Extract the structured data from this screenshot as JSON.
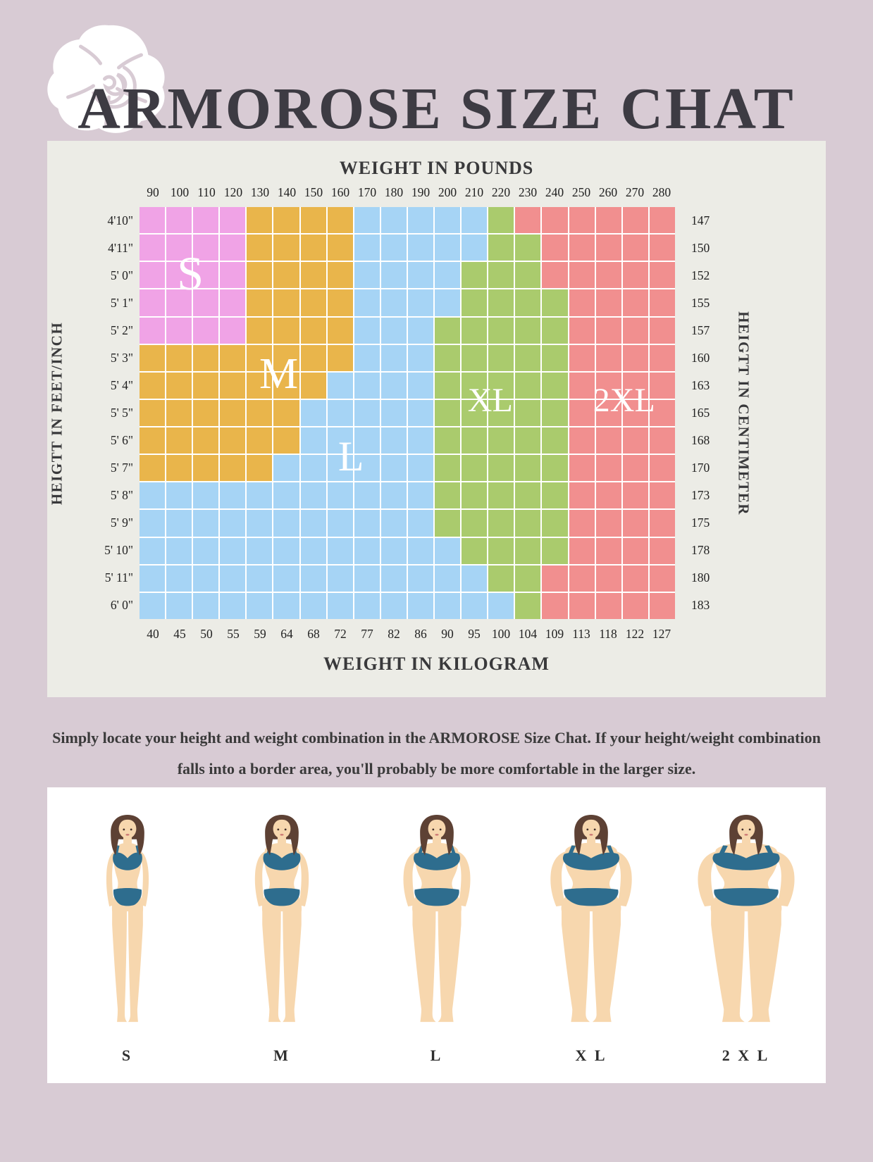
{
  "header": {
    "title": "ARMOROSE SIZE CHAT"
  },
  "chart_data": {
    "type": "heatmap",
    "top_axis_title": "WEIGHT IN POUNDS",
    "bottom_axis_title": "WEIGHT IN KILOGRAM",
    "left_axis_title": "HEIGTT IN FEET/INCH",
    "right_axis_title": "HEIGTT IN CENTIMETER",
    "pounds": [
      "90",
      "100",
      "110",
      "120",
      "130",
      "140",
      "150",
      "160",
      "170",
      "180",
      "190",
      "200",
      "210",
      "220",
      "230",
      "240",
      "250",
      "260",
      "270",
      "280"
    ],
    "kilograms": [
      "40",
      "45",
      "50",
      "55",
      "59",
      "64",
      "68",
      "72",
      "77",
      "82",
      "86",
      "90",
      "95",
      "100",
      "104",
      "109",
      "113",
      "118",
      "122",
      "127"
    ],
    "size_labels": [
      "S",
      "M",
      "L",
      "XL",
      "2XL"
    ],
    "size_colors": {
      "S": "#f0a3e6",
      "M": "#e9b54b",
      "L": "#a6d4f5",
      "XL": "#aacb6d",
      "2XL": "#f18f8f"
    },
    "rows": [
      {
        "feet": "4'10\"",
        "cm": "147",
        "spans": [
          [
            "S",
            4
          ],
          [
            "M",
            4
          ],
          [
            "L",
            5
          ],
          [
            "XL",
            1
          ],
          [
            "2XL",
            6
          ]
        ]
      },
      {
        "feet": "4'11\"",
        "cm": "150",
        "spans": [
          [
            "S",
            4
          ],
          [
            "M",
            4
          ],
          [
            "L",
            5
          ],
          [
            "XL",
            2
          ],
          [
            "2XL",
            5
          ]
        ]
      },
      {
        "feet": "5' 0\"",
        "cm": "152",
        "spans": [
          [
            "S",
            4
          ],
          [
            "M",
            4
          ],
          [
            "L",
            4
          ],
          [
            "XL",
            3
          ],
          [
            "2XL",
            5
          ]
        ]
      },
      {
        "feet": "5' 1\"",
        "cm": "155",
        "spans": [
          [
            "S",
            4
          ],
          [
            "M",
            4
          ],
          [
            "L",
            4
          ],
          [
            "XL",
            4
          ],
          [
            "2XL",
            4
          ]
        ]
      },
      {
        "feet": "5' 2\"",
        "cm": "157",
        "spans": [
          [
            "S",
            4
          ],
          [
            "M",
            4
          ],
          [
            "L",
            3
          ],
          [
            "XL",
            5
          ],
          [
            "2XL",
            4
          ]
        ]
      },
      {
        "feet": "5' 3\"",
        "cm": "160",
        "spans": [
          [
            "M",
            8
          ],
          [
            "L",
            3
          ],
          [
            "XL",
            5
          ],
          [
            "2XL",
            4
          ]
        ]
      },
      {
        "feet": "5' 4\"",
        "cm": "163",
        "spans": [
          [
            "M",
            7
          ],
          [
            "L",
            4
          ],
          [
            "XL",
            5
          ],
          [
            "2XL",
            4
          ]
        ]
      },
      {
        "feet": "5' 5\"",
        "cm": "165",
        "spans": [
          [
            "M",
            6
          ],
          [
            "L",
            5
          ],
          [
            "XL",
            5
          ],
          [
            "2XL",
            4
          ]
        ]
      },
      {
        "feet": "5' 6\"",
        "cm": "168",
        "spans": [
          [
            "M",
            6
          ],
          [
            "L",
            5
          ],
          [
            "XL",
            5
          ],
          [
            "2XL",
            4
          ]
        ]
      },
      {
        "feet": "5' 7\"",
        "cm": "170",
        "spans": [
          [
            "M",
            5
          ],
          [
            "L",
            6
          ],
          [
            "XL",
            5
          ],
          [
            "2XL",
            4
          ]
        ]
      },
      {
        "feet": "5' 8\"",
        "cm": "173",
        "spans": [
          [
            "L",
            11
          ],
          [
            "XL",
            5
          ],
          [
            "2XL",
            4
          ]
        ]
      },
      {
        "feet": "5' 9\"",
        "cm": "175",
        "spans": [
          [
            "L",
            11
          ],
          [
            "XL",
            5
          ],
          [
            "2XL",
            4
          ]
        ]
      },
      {
        "feet": "5' 10\"",
        "cm": "178",
        "spans": [
          [
            "L",
            12
          ],
          [
            "XL",
            4
          ],
          [
            "2XL",
            4
          ]
        ]
      },
      {
        "feet": "5' 11\"",
        "cm": "180",
        "spans": [
          [
            "L",
            13
          ],
          [
            "XL",
            2
          ],
          [
            "2XL",
            5
          ]
        ]
      },
      {
        "feet": "6' 0\"",
        "cm": "183",
        "spans": [
          [
            "L",
            14
          ],
          [
            "XL",
            1
          ],
          [
            "2XL",
            5
          ]
        ]
      }
    ]
  },
  "note": {
    "line1": "Simply locate your height and weight combination in the ARMOROSE Size Chat. If your height/weight combination",
    "line2": "falls into a border area, you'll probably be more comfortable in the larger size."
  },
  "figures": {
    "labels": [
      "S",
      "M",
      "L",
      "X L",
      "2 X L"
    ]
  }
}
